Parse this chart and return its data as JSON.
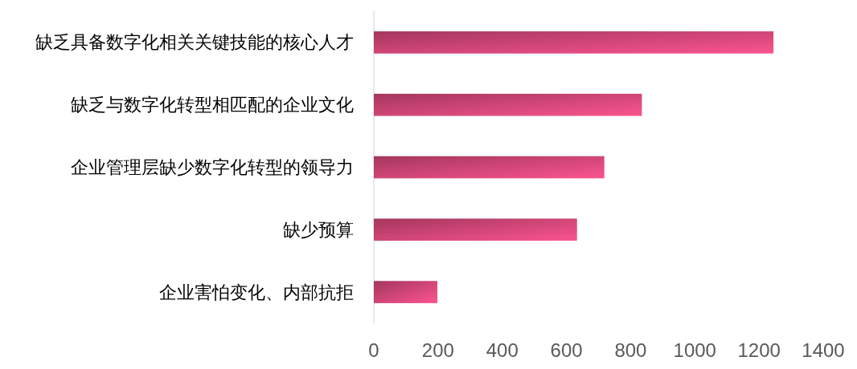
{
  "chart_data": {
    "type": "bar",
    "orientation": "horizontal",
    "categories": [
      "缺乏具备数字化相关关键技能的核心人才",
      "缺乏与数字化转型相匹配的企业文化",
      "企业管理层缺少数字化转型的领导力",
      "缺少预算",
      "企业害怕变化、内部抗拒"
    ],
    "values": [
      1245,
      835,
      718,
      633,
      198
    ],
    "color": "#e44c82",
    "xlim": [
      0,
      1400
    ],
    "xticks": [
      0,
      200,
      400,
      600,
      800,
      1000,
      1200,
      1400
    ]
  }
}
